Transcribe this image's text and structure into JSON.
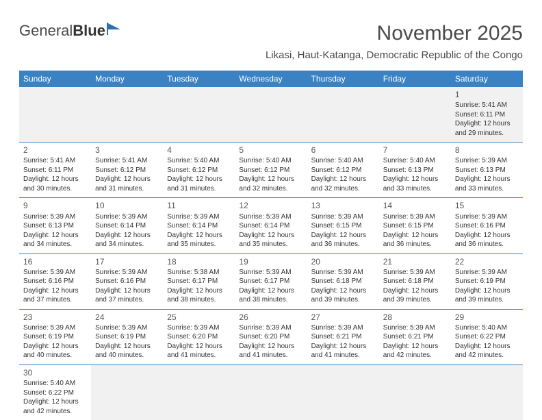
{
  "logo": {
    "part1": "General",
    "part2": "Blue",
    "icon_color": "#2d6fb0"
  },
  "title": "November 2025",
  "location": "Likasi, Haut-Katanga, Democratic Republic of the Congo",
  "header_bg": "#3b82c4",
  "header_fg": "#ffffff",
  "divider_color": "#3b82c4",
  "empty_bg": "#f1f1f1",
  "weekdays": [
    "Sunday",
    "Monday",
    "Tuesday",
    "Wednesday",
    "Thursday",
    "Friday",
    "Saturday"
  ],
  "weeks": [
    [
      null,
      null,
      null,
      null,
      null,
      null,
      {
        "n": "1",
        "sr": "Sunrise: 5:41 AM",
        "ss": "Sunset: 6:11 PM",
        "d1": "Daylight: 12 hours",
        "d2": "and 29 minutes."
      }
    ],
    [
      {
        "n": "2",
        "sr": "Sunrise: 5:41 AM",
        "ss": "Sunset: 6:11 PM",
        "d1": "Daylight: 12 hours",
        "d2": "and 30 minutes."
      },
      {
        "n": "3",
        "sr": "Sunrise: 5:41 AM",
        "ss": "Sunset: 6:12 PM",
        "d1": "Daylight: 12 hours",
        "d2": "and 31 minutes."
      },
      {
        "n": "4",
        "sr": "Sunrise: 5:40 AM",
        "ss": "Sunset: 6:12 PM",
        "d1": "Daylight: 12 hours",
        "d2": "and 31 minutes."
      },
      {
        "n": "5",
        "sr": "Sunrise: 5:40 AM",
        "ss": "Sunset: 6:12 PM",
        "d1": "Daylight: 12 hours",
        "d2": "and 32 minutes."
      },
      {
        "n": "6",
        "sr": "Sunrise: 5:40 AM",
        "ss": "Sunset: 6:12 PM",
        "d1": "Daylight: 12 hours",
        "d2": "and 32 minutes."
      },
      {
        "n": "7",
        "sr": "Sunrise: 5:40 AM",
        "ss": "Sunset: 6:13 PM",
        "d1": "Daylight: 12 hours",
        "d2": "and 33 minutes."
      },
      {
        "n": "8",
        "sr": "Sunrise: 5:39 AM",
        "ss": "Sunset: 6:13 PM",
        "d1": "Daylight: 12 hours",
        "d2": "and 33 minutes."
      }
    ],
    [
      {
        "n": "9",
        "sr": "Sunrise: 5:39 AM",
        "ss": "Sunset: 6:13 PM",
        "d1": "Daylight: 12 hours",
        "d2": "and 34 minutes."
      },
      {
        "n": "10",
        "sr": "Sunrise: 5:39 AM",
        "ss": "Sunset: 6:14 PM",
        "d1": "Daylight: 12 hours",
        "d2": "and 34 minutes."
      },
      {
        "n": "11",
        "sr": "Sunrise: 5:39 AM",
        "ss": "Sunset: 6:14 PM",
        "d1": "Daylight: 12 hours",
        "d2": "and 35 minutes."
      },
      {
        "n": "12",
        "sr": "Sunrise: 5:39 AM",
        "ss": "Sunset: 6:14 PM",
        "d1": "Daylight: 12 hours",
        "d2": "and 35 minutes."
      },
      {
        "n": "13",
        "sr": "Sunrise: 5:39 AM",
        "ss": "Sunset: 6:15 PM",
        "d1": "Daylight: 12 hours",
        "d2": "and 36 minutes."
      },
      {
        "n": "14",
        "sr": "Sunrise: 5:39 AM",
        "ss": "Sunset: 6:15 PM",
        "d1": "Daylight: 12 hours",
        "d2": "and 36 minutes."
      },
      {
        "n": "15",
        "sr": "Sunrise: 5:39 AM",
        "ss": "Sunset: 6:16 PM",
        "d1": "Daylight: 12 hours",
        "d2": "and 36 minutes."
      }
    ],
    [
      {
        "n": "16",
        "sr": "Sunrise: 5:39 AM",
        "ss": "Sunset: 6:16 PM",
        "d1": "Daylight: 12 hours",
        "d2": "and 37 minutes."
      },
      {
        "n": "17",
        "sr": "Sunrise: 5:39 AM",
        "ss": "Sunset: 6:16 PM",
        "d1": "Daylight: 12 hours",
        "d2": "and 37 minutes."
      },
      {
        "n": "18",
        "sr": "Sunrise: 5:38 AM",
        "ss": "Sunset: 6:17 PM",
        "d1": "Daylight: 12 hours",
        "d2": "and 38 minutes."
      },
      {
        "n": "19",
        "sr": "Sunrise: 5:39 AM",
        "ss": "Sunset: 6:17 PM",
        "d1": "Daylight: 12 hours",
        "d2": "and 38 minutes."
      },
      {
        "n": "20",
        "sr": "Sunrise: 5:39 AM",
        "ss": "Sunset: 6:18 PM",
        "d1": "Daylight: 12 hours",
        "d2": "and 39 minutes."
      },
      {
        "n": "21",
        "sr": "Sunrise: 5:39 AM",
        "ss": "Sunset: 6:18 PM",
        "d1": "Daylight: 12 hours",
        "d2": "and 39 minutes."
      },
      {
        "n": "22",
        "sr": "Sunrise: 5:39 AM",
        "ss": "Sunset: 6:19 PM",
        "d1": "Daylight: 12 hours",
        "d2": "and 39 minutes."
      }
    ],
    [
      {
        "n": "23",
        "sr": "Sunrise: 5:39 AM",
        "ss": "Sunset: 6:19 PM",
        "d1": "Daylight: 12 hours",
        "d2": "and 40 minutes."
      },
      {
        "n": "24",
        "sr": "Sunrise: 5:39 AM",
        "ss": "Sunset: 6:19 PM",
        "d1": "Daylight: 12 hours",
        "d2": "and 40 minutes."
      },
      {
        "n": "25",
        "sr": "Sunrise: 5:39 AM",
        "ss": "Sunset: 6:20 PM",
        "d1": "Daylight: 12 hours",
        "d2": "and 41 minutes."
      },
      {
        "n": "26",
        "sr": "Sunrise: 5:39 AM",
        "ss": "Sunset: 6:20 PM",
        "d1": "Daylight: 12 hours",
        "d2": "and 41 minutes."
      },
      {
        "n": "27",
        "sr": "Sunrise: 5:39 AM",
        "ss": "Sunset: 6:21 PM",
        "d1": "Daylight: 12 hours",
        "d2": "and 41 minutes."
      },
      {
        "n": "28",
        "sr": "Sunrise: 5:39 AM",
        "ss": "Sunset: 6:21 PM",
        "d1": "Daylight: 12 hours",
        "d2": "and 42 minutes."
      },
      {
        "n": "29",
        "sr": "Sunrise: 5:40 AM",
        "ss": "Sunset: 6:22 PM",
        "d1": "Daylight: 12 hours",
        "d2": "and 42 minutes."
      }
    ],
    [
      {
        "n": "30",
        "sr": "Sunrise: 5:40 AM",
        "ss": "Sunset: 6:22 PM",
        "d1": "Daylight: 12 hours",
        "d2": "and 42 minutes."
      },
      null,
      null,
      null,
      null,
      null,
      null
    ]
  ]
}
